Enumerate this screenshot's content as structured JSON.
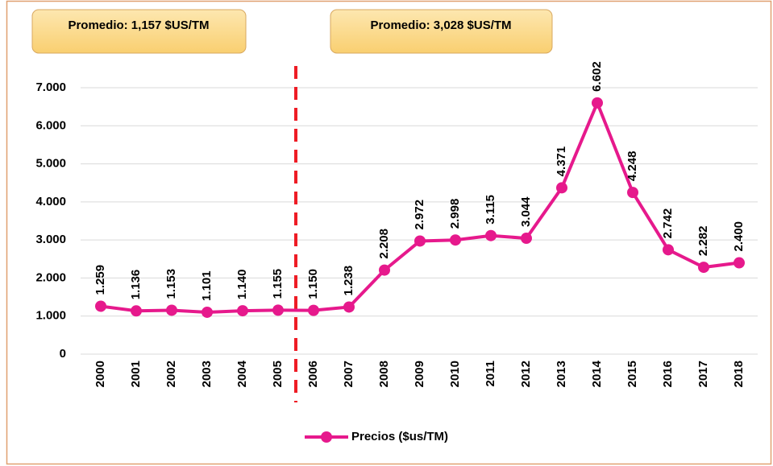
{
  "chart_data": {
    "type": "line",
    "categories": [
      "2000",
      "2001",
      "2002",
      "2003",
      "2004",
      "2005",
      "2006",
      "2007",
      "2008",
      "2009",
      "2010",
      "2011",
      "2012",
      "2013",
      "2014",
      "2015",
      "2016",
      "2017",
      "2018"
    ],
    "series": [
      {
        "name": "Precios ($us/TM)",
        "color": "#e6198c",
        "values": [
          1259,
          1136,
          1153,
          1101,
          1140,
          1155,
          1150,
          1238,
          2208,
          2972,
          2998,
          3115,
          3044,
          4371,
          6602,
          4248,
          2742,
          2282,
          2400
        ],
        "value_labels": [
          "1.259",
          "1.136",
          "1.153",
          "1.101",
          "1.140",
          "1.155",
          "1.150",
          "1.238",
          "2.208",
          "2.972",
          "2.998",
          "3.115",
          "3.044",
          "4.371",
          "6.602",
          "4.248",
          "2.742",
          "2.282",
          "2.400"
        ]
      }
    ],
    "ylim": [
      0,
      7000
    ],
    "yticks": [
      0,
      {
        "value": 1000,
        "label": "1.000"
      },
      {
        "value": 2000,
        "label": "2.000"
      },
      {
        "value": 3000,
        "label": "3.000"
      },
      {
        "value": 4000,
        "label": "4.000"
      },
      {
        "value": 5000,
        "label": "5.000"
      },
      {
        "value": 6000,
        "label": "6.000"
      },
      {
        "value": 7000,
        "label": "7.000"
      }
    ],
    "grid": true,
    "legend": "bottom",
    "annotations": [
      "Promedio: 1,157 $US/TM",
      "Promedio: 3,028 $US/TM"
    ]
  }
}
